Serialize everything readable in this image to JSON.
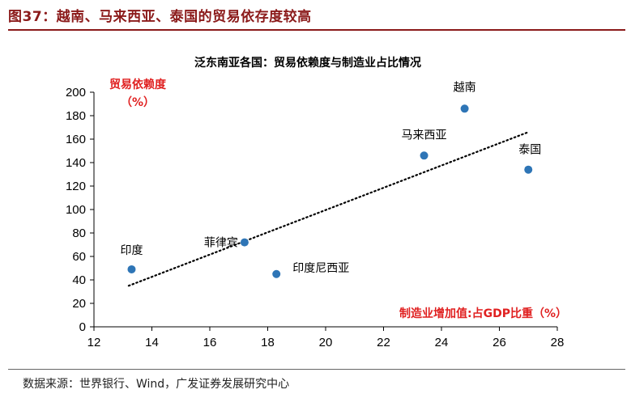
{
  "header": {
    "title": "图37：越南、马来西亚、泰国的贸易依存度较高"
  },
  "footer": {
    "source": "数据来源：世界银行、Wind，广发证券发展研究中心"
  },
  "colors": {
    "title": "#8b1a1a",
    "axis_label": "#e02020",
    "point": "#2e75b6",
    "trend": "#000000"
  },
  "chart_data": {
    "type": "scatter",
    "title": "泛东南亚各国：贸易依赖度与制造业占比情况",
    "xlabel": "制造业增加值:占GDP比重（%）",
    "ylabel_line1": "贸易依赖度",
    "ylabel_line2": "（%）",
    "xlim": [
      12,
      28
    ],
    "ylim": [
      0,
      200
    ],
    "xticks": [
      12,
      14,
      16,
      18,
      20,
      22,
      24,
      26,
      28
    ],
    "yticks": [
      0,
      20,
      40,
      60,
      80,
      100,
      120,
      140,
      160,
      180,
      200
    ],
    "grid": false,
    "points": [
      {
        "name": "印度",
        "x": 13.3,
        "y": 49
      },
      {
        "name": "菲律宾",
        "x": 17.2,
        "y": 72
      },
      {
        "name": "印度尼西亚",
        "x": 18.3,
        "y": 45
      },
      {
        "name": "马来西亚",
        "x": 23.4,
        "y": 146
      },
      {
        "name": "越南",
        "x": 24.8,
        "y": 186
      },
      {
        "name": "泰国",
        "x": 27.0,
        "y": 134
      }
    ],
    "trendline": {
      "style": "dotted",
      "x": [
        13.2,
        27.0
      ],
      "y": [
        35,
        166
      ]
    }
  }
}
